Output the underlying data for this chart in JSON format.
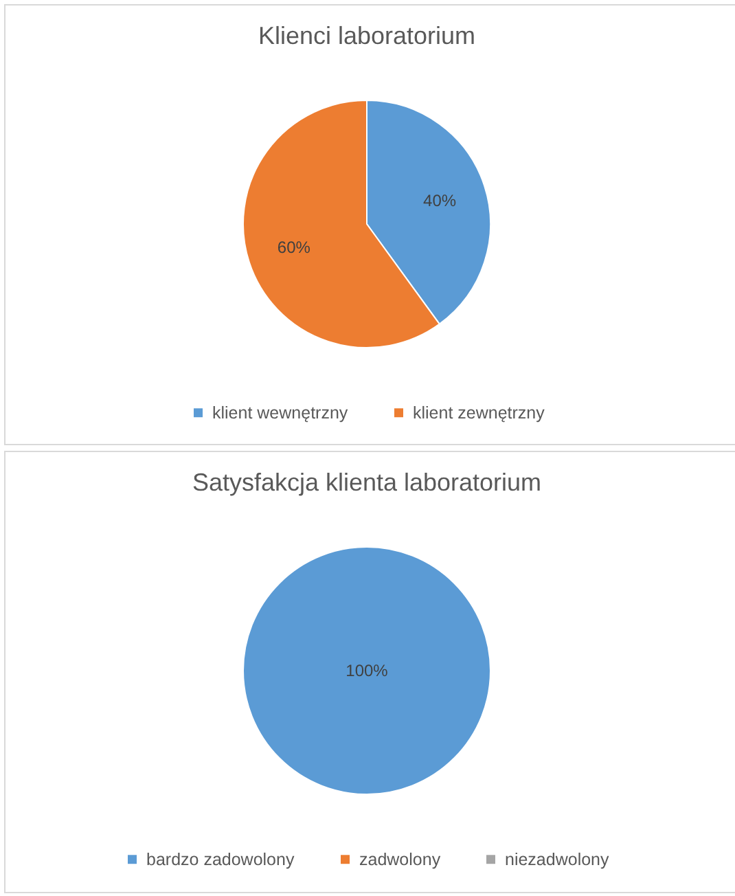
{
  "chart_data": [
    {
      "type": "pie",
      "title": "Klienci laboratorium",
      "categories": [
        "klient wewnętrzny",
        "klient zewnętrzny"
      ],
      "values": [
        40,
        60
      ],
      "colors": [
        "#5b9bd5",
        "#ed7d31"
      ],
      "value_labels": [
        "40%",
        "60%"
      ],
      "legend": "bottom"
    },
    {
      "type": "pie",
      "title": "Satysfakcja klienta laboratorium",
      "categories": [
        "bardzo zadowolony",
        "zadwolony",
        "niezadwolony"
      ],
      "values": [
        100,
        0,
        0
      ],
      "colors": [
        "#5b9bd5",
        "#ed7d31",
        "#a5a5a5"
      ],
      "value_labels": [
        "100%",
        null,
        null
      ],
      "legend": "bottom"
    }
  ]
}
